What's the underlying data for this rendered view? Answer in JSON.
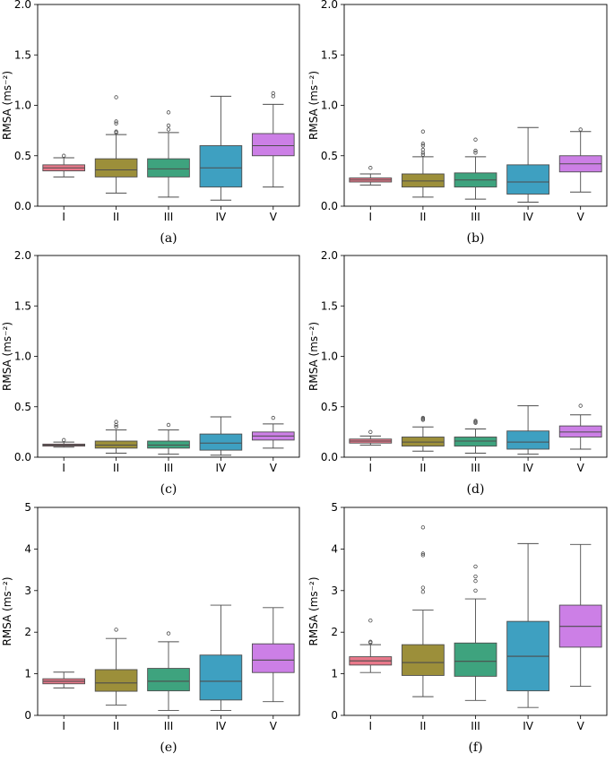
{
  "chart_data": [
    {
      "id": "a",
      "caption": "(a)",
      "type": "box",
      "ylabel": "RMSA (ms⁻²)",
      "ylim": [
        0,
        2.0
      ],
      "yticks": [
        "0.0",
        "0.5",
        "1.0",
        "1.5",
        "2.0"
      ],
      "categories": [
        "I",
        "II",
        "III",
        "IV",
        "V"
      ],
      "boxes": [
        {
          "label": "I",
          "color": "#e8788a",
          "min": 0.29,
          "q1": 0.35,
          "median": 0.38,
          "q3": 0.41,
          "max": 0.48,
          "fliers": [
            0.5
          ]
        },
        {
          "label": "II",
          "color": "#9c8f3a",
          "min": 0.13,
          "q1": 0.29,
          "median": 0.36,
          "q3": 0.47,
          "max": 0.71,
          "fliers": [
            0.73,
            0.74,
            0.82,
            0.84,
            1.08
          ]
        },
        {
          "label": "III",
          "color": "#3ea37e",
          "min": 0.09,
          "q1": 0.29,
          "median": 0.37,
          "q3": 0.47,
          "max": 0.73,
          "fliers": [
            0.76,
            0.8,
            0.93
          ]
        },
        {
          "label": "IV",
          "color": "#3ea0c1",
          "min": 0.06,
          "q1": 0.19,
          "median": 0.38,
          "q3": 0.6,
          "max": 1.09,
          "fliers": []
        },
        {
          "label": "V",
          "color": "#cc7fe6",
          "min": 0.19,
          "q1": 0.5,
          "median": 0.6,
          "q3": 0.72,
          "max": 1.01,
          "fliers": [
            1.09,
            1.12
          ]
        }
      ]
    },
    {
      "id": "b",
      "caption": "(b)",
      "type": "box",
      "ylabel": "RMSA (ms⁻²)",
      "ylim": [
        0,
        2.0
      ],
      "yticks": [
        "0.0",
        "0.5",
        "1.0",
        "1.5",
        "2.0"
      ],
      "categories": [
        "I",
        "II",
        "III",
        "IV",
        "V"
      ],
      "boxes": [
        {
          "label": "I",
          "color": "#e8788a",
          "min": 0.21,
          "q1": 0.24,
          "median": 0.26,
          "q3": 0.28,
          "max": 0.32,
          "fliers": [
            0.38
          ]
        },
        {
          "label": "II",
          "color": "#9c8f3a",
          "min": 0.09,
          "q1": 0.19,
          "median": 0.25,
          "q3": 0.32,
          "max": 0.49,
          "fliers": [
            0.51,
            0.53,
            0.56,
            0.6,
            0.62,
            0.74
          ]
        },
        {
          "label": "III",
          "color": "#3ea37e",
          "min": 0.07,
          "q1": 0.19,
          "median": 0.26,
          "q3": 0.33,
          "max": 0.49,
          "fliers": [
            0.53,
            0.55,
            0.66
          ]
        },
        {
          "label": "IV",
          "color": "#3ea0c1",
          "min": 0.04,
          "q1": 0.12,
          "median": 0.24,
          "q3": 0.41,
          "max": 0.78,
          "fliers": []
        },
        {
          "label": "V",
          "color": "#cc7fe6",
          "min": 0.14,
          "q1": 0.34,
          "median": 0.42,
          "q3": 0.5,
          "max": 0.74,
          "fliers": [
            0.76
          ]
        }
      ]
    },
    {
      "id": "c",
      "caption": "(c)",
      "type": "box",
      "ylabel": "RMSA (ms⁻²)",
      "ylim": [
        0,
        2.0
      ],
      "yticks": [
        "0.0",
        "0.5",
        "1.0",
        "1.5",
        "2.0"
      ],
      "categories": [
        "I",
        "II",
        "III",
        "IV",
        "V"
      ],
      "boxes": [
        {
          "label": "I",
          "color": "#e8788a",
          "min": 0.1,
          "q1": 0.11,
          "median": 0.12,
          "q3": 0.13,
          "max": 0.15,
          "fliers": [
            0.17
          ]
        },
        {
          "label": "II",
          "color": "#9c8f3a",
          "min": 0.04,
          "q1": 0.09,
          "median": 0.12,
          "q3": 0.16,
          "max": 0.27,
          "fliers": [
            0.3,
            0.32,
            0.35
          ]
        },
        {
          "label": "III",
          "color": "#3ea37e",
          "min": 0.03,
          "q1": 0.09,
          "median": 0.12,
          "q3": 0.16,
          "max": 0.27,
          "fliers": [
            0.32
          ]
        },
        {
          "label": "IV",
          "color": "#3ea0c1",
          "min": 0.02,
          "q1": 0.07,
          "median": 0.14,
          "q3": 0.23,
          "max": 0.4,
          "fliers": []
        },
        {
          "label": "V",
          "color": "#cc7fe6",
          "min": 0.09,
          "q1": 0.17,
          "median": 0.21,
          "q3": 0.25,
          "max": 0.33,
          "fliers": [
            0.39
          ]
        }
      ]
    },
    {
      "id": "d",
      "caption": "(d)",
      "type": "box",
      "ylabel": "RMSA (ms⁻²)",
      "ylim": [
        0,
        2.0
      ],
      "yticks": [
        "0.0",
        "0.5",
        "1.0",
        "1.5",
        "2.0"
      ],
      "categories": [
        "I",
        "II",
        "III",
        "IV",
        "V"
      ],
      "boxes": [
        {
          "label": "I",
          "color": "#e8788a",
          "min": 0.12,
          "q1": 0.14,
          "median": 0.16,
          "q3": 0.18,
          "max": 0.21,
          "fliers": [
            0.25
          ]
        },
        {
          "label": "II",
          "color": "#9c8f3a",
          "min": 0.06,
          "q1": 0.11,
          "median": 0.15,
          "q3": 0.2,
          "max": 0.3,
          "fliers": [
            0.37,
            0.38,
            0.39
          ]
        },
        {
          "label": "III",
          "color": "#3ea37e",
          "min": 0.04,
          "q1": 0.11,
          "median": 0.16,
          "q3": 0.2,
          "max": 0.28,
          "fliers": [
            0.34,
            0.35,
            0.36
          ]
        },
        {
          "label": "IV",
          "color": "#3ea0c1",
          "min": 0.03,
          "q1": 0.08,
          "median": 0.15,
          "q3": 0.26,
          "max": 0.51,
          "fliers": []
        },
        {
          "label": "V",
          "color": "#cc7fe6",
          "min": 0.08,
          "q1": 0.2,
          "median": 0.25,
          "q3": 0.31,
          "max": 0.42,
          "fliers": [
            0.51
          ]
        }
      ]
    },
    {
      "id": "e",
      "caption": "(e)",
      "type": "box",
      "ylabel": "RMSA (ms⁻²)",
      "ylim": [
        0,
        5
      ],
      "yticks": [
        "0",
        "1",
        "2",
        "3",
        "4",
        "5"
      ],
      "categories": [
        "I",
        "II",
        "III",
        "IV",
        "V"
      ],
      "boxes": [
        {
          "label": "I",
          "color": "#e8788a",
          "min": 0.66,
          "q1": 0.76,
          "median": 0.82,
          "q3": 0.88,
          "max": 1.04,
          "fliers": []
        },
        {
          "label": "II",
          "color": "#9c8f3a",
          "min": 0.25,
          "q1": 0.58,
          "median": 0.78,
          "q3": 1.1,
          "max": 1.85,
          "fliers": [
            2.06
          ]
        },
        {
          "label": "III",
          "color": "#3ea37e",
          "min": 0.12,
          "q1": 0.59,
          "median": 0.82,
          "q3": 1.13,
          "max": 1.77,
          "fliers": [
            1.97
          ]
        },
        {
          "label": "IV",
          "color": "#3ea0c1",
          "min": 0.12,
          "q1": 0.37,
          "median": 0.82,
          "q3": 1.45,
          "max": 2.65,
          "fliers": []
        },
        {
          "label": "V",
          "color": "#cc7fe6",
          "min": 0.33,
          "q1": 1.03,
          "median": 1.33,
          "q3": 1.72,
          "max": 2.59,
          "fliers": []
        }
      ]
    },
    {
      "id": "f",
      "caption": "(f)",
      "type": "box",
      "ylabel": "RMSA (ms⁻²)",
      "ylim": [
        0,
        5
      ],
      "yticks": [
        "0",
        "1",
        "2",
        "3",
        "4",
        "5"
      ],
      "categories": [
        "I",
        "II",
        "III",
        "IV",
        "V"
      ],
      "boxes": [
        {
          "label": "I",
          "color": "#e8788a",
          "min": 1.03,
          "q1": 1.21,
          "median": 1.31,
          "q3": 1.41,
          "max": 1.7,
          "fliers": [
            1.75,
            1.77,
            2.28
          ]
        },
        {
          "label": "II",
          "color": "#9c8f3a",
          "min": 0.45,
          "q1": 0.96,
          "median": 1.27,
          "q3": 1.7,
          "max": 2.53,
          "fliers": [
            2.97,
            3.07,
            3.85,
            3.89,
            4.52
          ]
        },
        {
          "label": "III",
          "color": "#3ea37e",
          "min": 0.36,
          "q1": 0.94,
          "median": 1.3,
          "q3": 1.74,
          "max": 2.8,
          "fliers": [
            3.0,
            3.23,
            3.34,
            3.58
          ]
        },
        {
          "label": "IV",
          "color": "#3ea0c1",
          "min": 0.19,
          "q1": 0.59,
          "median": 1.42,
          "q3": 2.26,
          "max": 4.13,
          "fliers": []
        },
        {
          "label": "V",
          "color": "#cc7fe6",
          "min": 0.7,
          "q1": 1.64,
          "median": 2.14,
          "q3": 2.65,
          "max": 4.11,
          "fliers": []
        }
      ]
    }
  ]
}
